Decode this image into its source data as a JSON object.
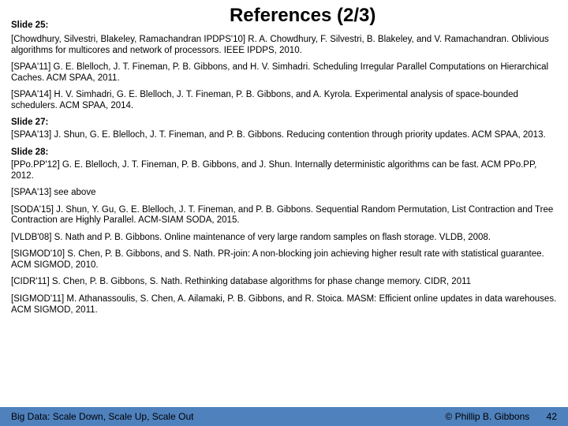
{
  "title": "References (2/3)",
  "title_fontsize": 24,
  "section_label_fontsize": 11.5,
  "ref_fontsize": 11.5,
  "footer_fontsize": 12,
  "footer_pagenum_fontsize": 12,
  "background_color": "#ffffff",
  "footer_bg_color": "#4f81bd",
  "text_color": "#000000",
  "sections": [
    {
      "label": "Slide 25:",
      "refs": [
        "[Chowdhury, Silvestri, Blakeley, Ramachandran IPDPS'10] R. A. Chowdhury, F. Silvestri, B. Blakeley, and V. Ramachandran. Oblivious algorithms for multicores and network of processors. IEEE IPDPS, 2010.",
        "[SPAA'11] G. E. Blelloch, J. T. Fineman, P. B. Gibbons, and H. V. Simhadri. Scheduling Irregular Parallel Computations on Hierarchical Caches. ACM SPAA, 2011.",
        "[SPAA'14] H. V. Simhadri, G. E. Blelloch, J. T. Fineman, P. B. Gibbons, and A. Kyrola. Experimental analysis of space-bounded schedulers. ACM SPAA, 2014."
      ]
    },
    {
      "label": "Slide 27:",
      "refs": [
        "[SPAA'13] J. Shun, G. E. Blelloch, J. T. Fineman, and P. B. Gibbons. Reducing contention through priority updates. ACM SPAA, 2013."
      ]
    },
    {
      "label": "Slide 28:",
      "refs": [
        "[PPo.PP'12] G. E. Blelloch, J. T. Fineman, P. B. Gibbons, and J. Shun. Internally deterministic algorithms can be fast.  ACM PPo.PP, 2012.",
        "[SPAA'13] see above",
        "[SODA'15]  J. Shun, Y. Gu, G. E. Blelloch, J. T. Fineman, and P. B. Gibbons. Sequential Random Permutation, List Contraction and Tree Contraction are Highly Parallel. ACM-SIAM SODA, 2015.",
        "[VLDB'08] S. Nath and P. B. Gibbons. Online maintenance of very large random samples on flash storage. VLDB, 2008.",
        "[SIGMOD'10] S. Chen, P. B. Gibbons, and S. Nath. PR-join: A non-blocking join achieving higher result rate with statistical guarantee. ACM SIGMOD, 2010.",
        "[CIDR'11] S. Chen, P. B. Gibbons, S. Nath. Rethinking database algorithms for phase change memory. CIDR, 2011",
        "[SIGMOD'11] M. Athanassoulis, S. Chen, A. Ailamaki, P. B. Gibbons, and R. Stoica. MASM: Efficient online updates in data warehouses. ACM SIGMOD, 2011."
      ]
    }
  ],
  "footer": {
    "left": "Big Data: Scale Down, Scale Up, Scale Out",
    "right": "© Phillip B. Gibbons",
    "page_num": "42"
  }
}
